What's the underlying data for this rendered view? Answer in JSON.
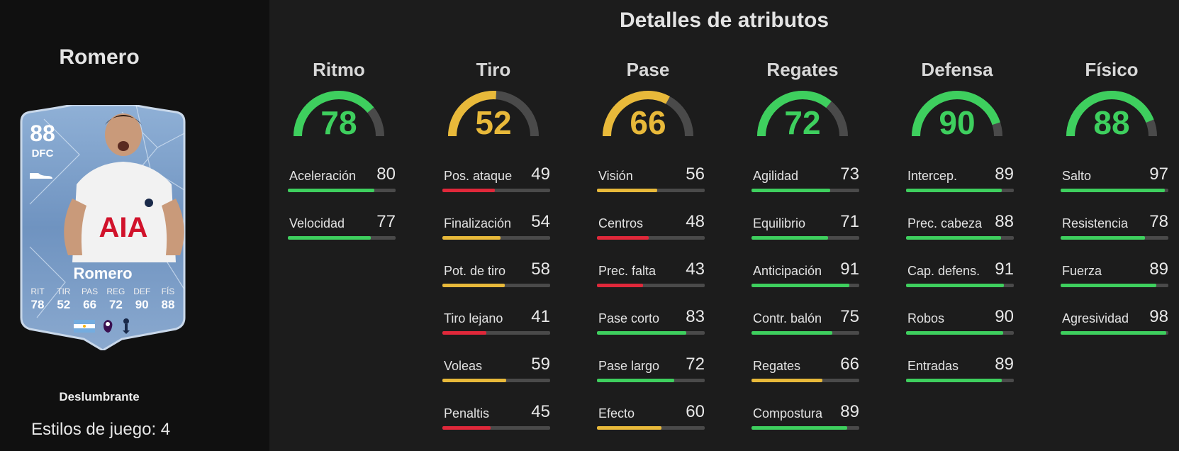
{
  "player": {
    "name": "Romero",
    "card": {
      "rating": "88",
      "position": "DFC",
      "name": "Romero",
      "stats": [
        {
          "label": "RIT",
          "value": "78"
        },
        {
          "label": "TIR",
          "value": "52"
        },
        {
          "label": "PAS",
          "value": "66"
        },
        {
          "label": "REG",
          "value": "72"
        },
        {
          "label": "DEF",
          "value": "90"
        },
        {
          "label": "FÍS",
          "value": "88"
        }
      ]
    },
    "rarity": "Deslumbrante",
    "playstyles": "Estilos de juego: 4"
  },
  "section_title": "Detalles de atributos",
  "colors": {
    "green": "#3ecf5e",
    "yellow": "#e8b93a",
    "red": "#e0283a",
    "track": "#4a4a4a"
  },
  "categories": [
    {
      "title": "Ritmo",
      "value": "78",
      "attrs": [
        {
          "name": "Aceleración",
          "value": "80"
        },
        {
          "name": "Velocidad",
          "value": "77"
        }
      ]
    },
    {
      "title": "Tiro",
      "value": "52",
      "attrs": [
        {
          "name": "Pos. ataque",
          "value": "49"
        },
        {
          "name": "Finalización",
          "value": "54"
        },
        {
          "name": "Pot. de tiro",
          "value": "58"
        },
        {
          "name": "Tiro lejano",
          "value": "41"
        },
        {
          "name": "Voleas",
          "value": "59"
        },
        {
          "name": "Penaltis",
          "value": "45"
        }
      ]
    },
    {
      "title": "Pase",
      "value": "66",
      "attrs": [
        {
          "name": "Visión",
          "value": "56"
        },
        {
          "name": "Centros",
          "value": "48"
        },
        {
          "name": "Prec. falta",
          "value": "43"
        },
        {
          "name": "Pase corto",
          "value": "83"
        },
        {
          "name": "Pase largo",
          "value": "72"
        },
        {
          "name": "Efecto",
          "value": "60"
        }
      ]
    },
    {
      "title": "Regates",
      "value": "72",
      "attrs": [
        {
          "name": "Agilidad",
          "value": "73"
        },
        {
          "name": "Equilibrio",
          "value": "71"
        },
        {
          "name": "Anticipación",
          "value": "91"
        },
        {
          "name": "Contr. balón",
          "value": "75"
        },
        {
          "name": "Regates",
          "value": "66"
        },
        {
          "name": "Compostura",
          "value": "89"
        }
      ]
    },
    {
      "title": "Defensa",
      "value": "90",
      "attrs": [
        {
          "name": "Intercep.",
          "value": "89"
        },
        {
          "name": "Prec. cabeza",
          "value": "88"
        },
        {
          "name": "Cap. defens.",
          "value": "91"
        },
        {
          "name": "Robos",
          "value": "90"
        },
        {
          "name": "Entradas",
          "value": "89"
        }
      ]
    },
    {
      "title": "Físico",
      "value": "88",
      "attrs": [
        {
          "name": "Salto",
          "value": "97"
        },
        {
          "name": "Resistencia",
          "value": "78"
        },
        {
          "name": "Fuerza",
          "value": "89"
        },
        {
          "name": "Agresividad",
          "value": "98"
        }
      ]
    }
  ]
}
